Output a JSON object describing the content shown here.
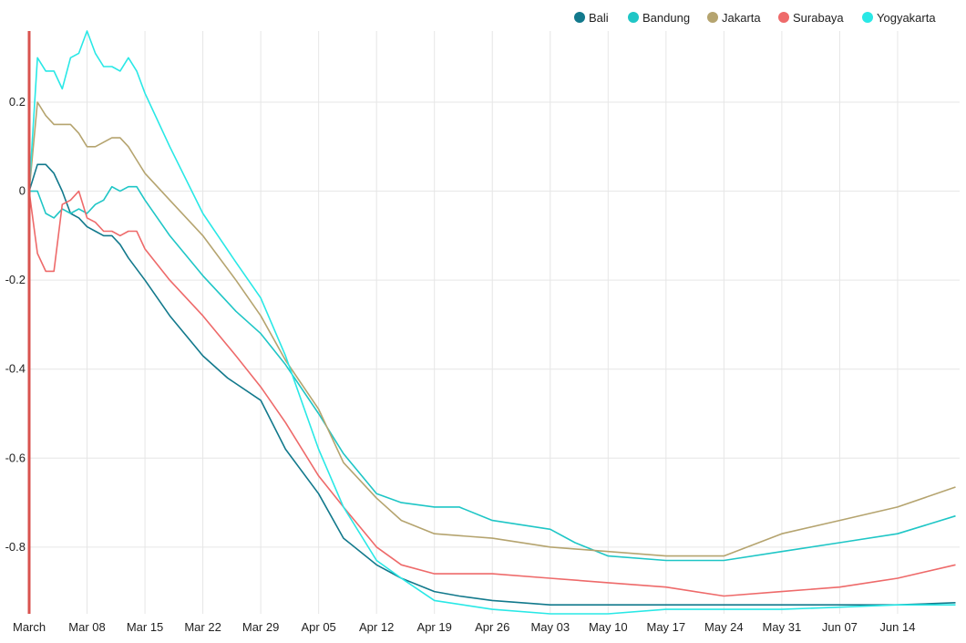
{
  "chart_data": {
    "type": "line",
    "title": "",
    "xlabel": "",
    "ylabel": "",
    "ylim": [
      -0.95,
      0.36
    ],
    "grid": true,
    "legend_position": "top-right",
    "x_start_label": "March",
    "x_ticks": [
      "March",
      "Mar 08",
      "Mar 15",
      "Mar 22",
      "Mar 29",
      "Apr 05",
      "Apr 12",
      "Apr 19",
      "Apr 26",
      "May 03",
      "May 10",
      "May 17",
      "May 24",
      "May 31",
      "Jun 07",
      "Jun 14"
    ],
    "y_ticks": [
      0.2,
      0,
      -0.2,
      -0.4,
      -0.6,
      -0.8
    ],
    "y_tick_labels": [
      "0.2",
      "0",
      "-0.2",
      "-0.4",
      "-0.6",
      "-0.8"
    ],
    "x": [
      "Mar 01",
      "Mar 08",
      "Mar 15",
      "Mar 22",
      "Mar 29",
      "Apr 05",
      "Apr 12",
      "Apr 19",
      "Apr 26",
      "May 03",
      "May 10",
      "May 17",
      "May 24",
      "May 31",
      "Jun 07",
      "Jun 14",
      "Jun 21"
    ],
    "series": [
      {
        "name": "Bali",
        "color": "#12798c",
        "points": [
          [
            "Mar 01",
            0.0
          ],
          [
            "Mar 02",
            0.06
          ],
          [
            "Mar 03",
            0.06
          ],
          [
            "Mar 04",
            0.04
          ],
          [
            "Mar 05",
            0.0
          ],
          [
            "Mar 06",
            -0.05
          ],
          [
            "Mar 07",
            -0.06
          ],
          [
            "Mar 08",
            -0.08
          ],
          [
            "Mar 09",
            -0.09
          ],
          [
            "Mar 10",
            -0.1
          ],
          [
            "Mar 11",
            -0.1
          ],
          [
            "Mar 12",
            -0.12
          ],
          [
            "Mar 13",
            -0.15
          ],
          [
            "Mar 15",
            -0.2
          ],
          [
            "Mar 18",
            -0.28
          ],
          [
            "Mar 22",
            -0.37
          ],
          [
            "Mar 25",
            -0.42
          ],
          [
            "Mar 29",
            -0.47
          ],
          [
            "Apr 01",
            -0.58
          ],
          [
            "Apr 05",
            -0.68
          ],
          [
            "Apr 08",
            -0.78
          ],
          [
            "Apr 12",
            -0.84
          ],
          [
            "Apr 15",
            -0.87
          ],
          [
            "Apr 19",
            -0.9
          ],
          [
            "Apr 22",
            -0.91
          ],
          [
            "Apr 26",
            -0.92
          ],
          [
            "May 03",
            -0.93
          ],
          [
            "May 10",
            -0.93
          ],
          [
            "May 17",
            -0.93
          ],
          [
            "May 24",
            -0.93
          ],
          [
            "May 31",
            -0.93
          ],
          [
            "Jun 07",
            -0.93
          ],
          [
            "Jun 14",
            -0.93
          ],
          [
            "Jun 21",
            -0.925
          ]
        ]
      },
      {
        "name": "Bandung",
        "color": "#1fc6c6",
        "points": [
          [
            "Mar 01",
            0.0
          ],
          [
            "Mar 02",
            0.0
          ],
          [
            "Mar 03",
            -0.05
          ],
          [
            "Mar 04",
            -0.06
          ],
          [
            "Mar 05",
            -0.04
          ],
          [
            "Mar 06",
            -0.05
          ],
          [
            "Mar 07",
            -0.04
          ],
          [
            "Mar 08",
            -0.05
          ],
          [
            "Mar 09",
            -0.03
          ],
          [
            "Mar 10",
            -0.02
          ],
          [
            "Mar 11",
            0.01
          ],
          [
            "Mar 12",
            0.0
          ],
          [
            "Mar 13",
            0.01
          ],
          [
            "Mar 14",
            0.01
          ],
          [
            "Mar 15",
            -0.02
          ],
          [
            "Mar 18",
            -0.1
          ],
          [
            "Mar 22",
            -0.19
          ],
          [
            "Mar 26",
            -0.27
          ],
          [
            "Mar 29",
            -0.32
          ],
          [
            "Apr 01",
            -0.39
          ],
          [
            "Apr 05",
            -0.5
          ],
          [
            "Apr 08",
            -0.59
          ],
          [
            "Apr 12",
            -0.68
          ],
          [
            "Apr 15",
            -0.7
          ],
          [
            "Apr 19",
            -0.71
          ],
          [
            "Apr 22",
            -0.71
          ],
          [
            "Apr 26",
            -0.74
          ],
          [
            "May 03",
            -0.76
          ],
          [
            "May 06",
            -0.79
          ],
          [
            "May 10",
            -0.82
          ],
          [
            "May 17",
            -0.83
          ],
          [
            "May 24",
            -0.83
          ],
          [
            "May 31",
            -0.81
          ],
          [
            "Jun 07",
            -0.79
          ],
          [
            "Jun 14",
            -0.77
          ],
          [
            "Jun 21",
            -0.73
          ]
        ]
      },
      {
        "name": "Jakarta",
        "color": "#b5a46f",
        "points": [
          [
            "Mar 01",
            0.0
          ],
          [
            "Mar 02",
            0.2
          ],
          [
            "Mar 03",
            0.17
          ],
          [
            "Mar 04",
            0.15
          ],
          [
            "Mar 05",
            0.15
          ],
          [
            "Mar 06",
            0.15
          ],
          [
            "Mar 07",
            0.13
          ],
          [
            "Mar 08",
            0.1
          ],
          [
            "Mar 09",
            0.1
          ],
          [
            "Mar 10",
            0.11
          ],
          [
            "Mar 11",
            0.12
          ],
          [
            "Mar 12",
            0.12
          ],
          [
            "Mar 13",
            0.1
          ],
          [
            "Mar 14",
            0.07
          ],
          [
            "Mar 15",
            0.04
          ],
          [
            "Mar 18",
            -0.02
          ],
          [
            "Mar 22",
            -0.1
          ],
          [
            "Mar 26",
            -0.2
          ],
          [
            "Mar 29",
            -0.28
          ],
          [
            "Apr 01",
            -0.38
          ],
          [
            "Apr 05",
            -0.49
          ],
          [
            "Apr 08",
            -0.61
          ],
          [
            "Apr 12",
            -0.69
          ],
          [
            "Apr 15",
            -0.74
          ],
          [
            "Apr 19",
            -0.77
          ],
          [
            "Apr 26",
            -0.78
          ],
          [
            "May 03",
            -0.8
          ],
          [
            "May 10",
            -0.81
          ],
          [
            "May 17",
            -0.82
          ],
          [
            "May 24",
            -0.82
          ],
          [
            "May 31",
            -0.77
          ],
          [
            "Jun 07",
            -0.74
          ],
          [
            "Jun 14",
            -0.71
          ],
          [
            "Jun 21",
            -0.665
          ]
        ]
      },
      {
        "name": "Surabaya",
        "color": "#ee6a6a",
        "points": [
          [
            "Mar 01",
            0.0
          ],
          [
            "Mar 02",
            -0.14
          ],
          [
            "Mar 03",
            -0.18
          ],
          [
            "Mar 04",
            -0.18
          ],
          [
            "Mar 05",
            -0.03
          ],
          [
            "Mar 06",
            -0.02
          ],
          [
            "Mar 07",
            0.0
          ],
          [
            "Mar 08",
            -0.06
          ],
          [
            "Mar 09",
            -0.07
          ],
          [
            "Mar 10",
            -0.09
          ],
          [
            "Mar 11",
            -0.09
          ],
          [
            "Mar 12",
            -0.1
          ],
          [
            "Mar 13",
            -0.09
          ],
          [
            "Mar 14",
            -0.09
          ],
          [
            "Mar 15",
            -0.13
          ],
          [
            "Mar 18",
            -0.2
          ],
          [
            "Mar 22",
            -0.28
          ],
          [
            "Mar 26",
            -0.37
          ],
          [
            "Mar 29",
            -0.44
          ],
          [
            "Apr 01",
            -0.52
          ],
          [
            "Apr 05",
            -0.64
          ],
          [
            "Apr 08",
            -0.71
          ],
          [
            "Apr 12",
            -0.8
          ],
          [
            "Apr 15",
            -0.84
          ],
          [
            "Apr 19",
            -0.86
          ],
          [
            "Apr 26",
            -0.86
          ],
          [
            "May 03",
            -0.87
          ],
          [
            "May 10",
            -0.88
          ],
          [
            "May 17",
            -0.89
          ],
          [
            "May 24",
            -0.91
          ],
          [
            "May 31",
            -0.9
          ],
          [
            "Jun 07",
            -0.89
          ],
          [
            "Jun 14",
            -0.87
          ],
          [
            "Jun 21",
            -0.84
          ]
        ]
      },
      {
        "name": "Yogyakarta",
        "color": "#29e8e6",
        "points": [
          [
            "Mar 01",
            0.0
          ],
          [
            "Mar 02",
            0.3
          ],
          [
            "Mar 03",
            0.27
          ],
          [
            "Mar 04",
            0.27
          ],
          [
            "Mar 05",
            0.23
          ],
          [
            "Mar 06",
            0.3
          ],
          [
            "Mar 07",
            0.31
          ],
          [
            "Mar 08",
            0.36
          ],
          [
            "Mar 09",
            0.31
          ],
          [
            "Mar 10",
            0.28
          ],
          [
            "Mar 11",
            0.28
          ],
          [
            "Mar 12",
            0.27
          ],
          [
            "Mar 13",
            0.3
          ],
          [
            "Mar 14",
            0.27
          ],
          [
            "Mar 15",
            0.22
          ],
          [
            "Mar 18",
            0.1
          ],
          [
            "Mar 22",
            -0.05
          ],
          [
            "Mar 26",
            -0.16
          ],
          [
            "Mar 29",
            -0.24
          ],
          [
            "Apr 01",
            -0.37
          ],
          [
            "Apr 05",
            -0.58
          ],
          [
            "Apr 08",
            -0.71
          ],
          [
            "Apr 12",
            -0.83
          ],
          [
            "Apr 15",
            -0.87
          ],
          [
            "Apr 19",
            -0.92
          ],
          [
            "Apr 26",
            -0.94
          ],
          [
            "May 03",
            -0.95
          ],
          [
            "May 10",
            -0.95
          ],
          [
            "May 17",
            -0.94
          ],
          [
            "May 24",
            -0.94
          ],
          [
            "May 31",
            -0.94
          ],
          [
            "Jun 07",
            -0.935
          ],
          [
            "Jun 14",
            -0.93
          ],
          [
            "Jun 21",
            -0.93
          ]
        ]
      }
    ],
    "current_marker": {
      "x": "Mar 01",
      "color": "#d9534f"
    }
  }
}
